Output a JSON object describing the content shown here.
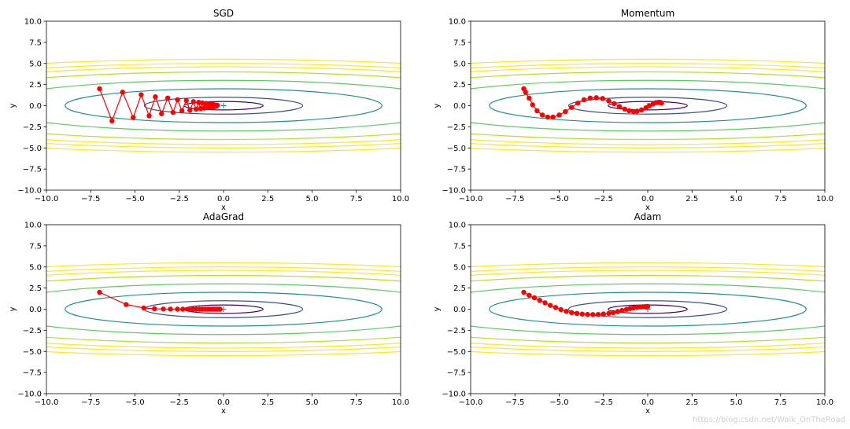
{
  "chart_data": [
    {
      "type": "line",
      "title": "SGD",
      "xlabel": "x",
      "ylabel": "y",
      "xlim": [
        -10,
        10
      ],
      "ylim": [
        -10,
        10
      ],
      "xticks": [
        -10,
        -7.5,
        -5,
        -2.5,
        0,
        2.5,
        5,
        7.5,
        10
      ],
      "yticks": [
        -10,
        -7.5,
        -5,
        -2.5,
        0,
        2.5,
        5,
        7.5,
        10
      ],
      "xtick_labels": [
        "−10.0",
        "−7.5",
        "−5.0",
        "−2.5",
        "0.0",
        "2.5",
        "5.0",
        "7.5",
        "10.0"
      ],
      "ytick_labels": [
        "−10.0",
        "−7.5",
        "−5.0",
        "−2.5",
        "0.0",
        "2.5",
        "5.0",
        "7.5",
        "10.0"
      ],
      "contour_levels": [
        0.5,
        1.0,
        2.0,
        3.0,
        4.0,
        4.6,
        5.0,
        5.5
      ],
      "minimum_marker": [
        0,
        0
      ],
      "series": [
        {
          "name": "path",
          "x": [
            -7.0,
            -6.3,
            -5.7,
            -5.1,
            -4.65,
            -4.2,
            -3.85,
            -3.5,
            -3.15,
            -2.85,
            -2.6,
            -2.35,
            -2.1,
            -1.9,
            -1.7,
            -1.55,
            -1.4,
            -1.3,
            -1.2,
            -1.1,
            -1.0,
            -0.9,
            -0.82,
            -0.75,
            -0.68,
            -0.62,
            -0.56,
            -0.5,
            -0.45,
            -0.4,
            -0.35
          ],
          "y": [
            2.0,
            -1.8,
            1.6,
            -1.4,
            1.3,
            -1.2,
            1.05,
            -0.95,
            0.9,
            -0.8,
            0.7,
            -0.6,
            0.62,
            -0.52,
            0.48,
            -0.42,
            0.4,
            -0.34,
            0.32,
            -0.28,
            0.26,
            -0.22,
            0.2,
            -0.18,
            0.15,
            -0.13,
            0.12,
            -0.1,
            0.08,
            -0.06,
            0.05
          ]
        }
      ]
    },
    {
      "type": "line",
      "title": "Momentum",
      "xlabel": "x",
      "ylabel": "y",
      "xlim": [
        -10,
        10
      ],
      "ylim": [
        -10,
        10
      ],
      "xticks": [
        -10,
        -7.5,
        -5,
        -2.5,
        0,
        2.5,
        5,
        7.5,
        10
      ],
      "yticks": [
        -10,
        -7.5,
        -5,
        -2.5,
        0,
        2.5,
        5,
        7.5,
        10
      ],
      "xtick_labels": [
        "−10.0",
        "−7.5",
        "−5.0",
        "−2.5",
        "0.0",
        "2.5",
        "5.0",
        "7.5",
        "10.0"
      ],
      "ytick_labels": [
        "−10.0",
        "−7.5",
        "−5.0",
        "−2.5",
        "0.0",
        "2.5",
        "5.0",
        "7.5",
        "10.0"
      ],
      "contour_levels": [
        0.5,
        1.0,
        2.0,
        3.0,
        4.0,
        4.6,
        5.0,
        5.5
      ],
      "minimum_marker": [
        0,
        0
      ],
      "series": [
        {
          "name": "path",
          "x": [
            -7.0,
            -6.9,
            -6.7,
            -6.5,
            -6.25,
            -5.95,
            -5.65,
            -5.35,
            -5.0,
            -4.65,
            -4.3,
            -3.95,
            -3.6,
            -3.25,
            -2.9,
            -2.55,
            -2.2,
            -1.9,
            -1.6,
            -1.3,
            -1.05,
            -0.8,
            -0.6,
            -0.35,
            -0.1,
            0.1,
            0.3,
            0.45,
            0.6,
            0.7,
            0.75,
            0.78
          ],
          "y": [
            2.0,
            1.6,
            0.9,
            0.1,
            -0.6,
            -1.1,
            -1.35,
            -1.35,
            -1.1,
            -0.7,
            -0.2,
            0.3,
            0.7,
            0.9,
            0.95,
            0.85,
            0.55,
            0.25,
            -0.1,
            -0.4,
            -0.6,
            -0.7,
            -0.65,
            -0.5,
            -0.25,
            0.0,
            0.2,
            0.35,
            0.4,
            0.4,
            0.35,
            0.3
          ]
        }
      ]
    },
    {
      "type": "line",
      "title": "AdaGrad",
      "xlabel": "x",
      "ylabel": "y",
      "xlim": [
        -10,
        10
      ],
      "ylim": [
        -10,
        10
      ],
      "xticks": [
        -10,
        -7.5,
        -5,
        -2.5,
        0,
        2.5,
        5,
        7.5,
        10
      ],
      "yticks": [
        -10,
        -7.5,
        -5,
        -2.5,
        0,
        2.5,
        5,
        7.5,
        10
      ],
      "xtick_labels": [
        "−10.0",
        "−7.5",
        "−5.0",
        "−2.5",
        "0.0",
        "2.5",
        "5.0",
        "7.5",
        "10.0"
      ],
      "ytick_labels": [
        "−10.0",
        "−7.5",
        "−5.0",
        "−2.5",
        "0.0",
        "2.5",
        "5.0",
        "7.5",
        "10.0"
      ],
      "contour_levels": [
        0.5,
        1.0,
        2.0,
        3.0,
        4.0,
        4.6,
        5.0,
        5.5
      ],
      "minimum_marker": [
        0,
        0
      ],
      "series": [
        {
          "name": "path",
          "x": [
            -7.0,
            -5.5,
            -4.5,
            -3.9,
            -3.4,
            -3.0,
            -2.6,
            -2.3,
            -2.0,
            -1.75,
            -1.55,
            -1.35,
            -1.2,
            -1.05,
            -0.9,
            -0.78,
            -0.66,
            -0.55,
            -0.45,
            -0.36,
            -0.28,
            -0.2
          ],
          "y": [
            2.0,
            0.55,
            0.15,
            0.05,
            0.02,
            0.01,
            0.0,
            0.0,
            0.0,
            0.0,
            0.0,
            0.0,
            0.0,
            0.0,
            0.0,
            0.0,
            0.0,
            0.0,
            0.0,
            0.0,
            0.0,
            0.0
          ]
        }
      ]
    },
    {
      "type": "line",
      "title": "Adam",
      "xlabel": "x",
      "ylabel": "y",
      "xlim": [
        -10,
        10
      ],
      "ylim": [
        -10,
        10
      ],
      "xticks": [
        -10,
        -7.5,
        -5,
        -2.5,
        0,
        2.5,
        5,
        7.5,
        10
      ],
      "yticks": [
        -10,
        -7.5,
        -5,
        -2.5,
        0,
        2.5,
        5,
        7.5,
        10
      ],
      "xtick_labels": [
        "−10.0",
        "−7.5",
        "−5.0",
        "−2.5",
        "0.0",
        "2.5",
        "5.0",
        "7.5",
        "10.0"
      ],
      "ytick_labels": [
        "−10.0",
        "−7.5",
        "−5.0",
        "−2.5",
        "0.0",
        "2.5",
        "5.0",
        "7.5",
        "10.0"
      ],
      "contour_levels": [
        0.5,
        1.0,
        2.0,
        3.0,
        4.0,
        4.6,
        5.0,
        5.5
      ],
      "minimum_marker": [
        0,
        0
      ],
      "series": [
        {
          "name": "path",
          "x": [
            -7.0,
            -6.7,
            -6.4,
            -6.1,
            -5.8,
            -5.5,
            -5.2,
            -4.9,
            -4.6,
            -4.3,
            -4.0,
            -3.7,
            -3.4,
            -3.1,
            -2.8,
            -2.5,
            -2.2,
            -1.95,
            -1.7,
            -1.45,
            -1.2,
            -1.0,
            -0.8,
            -0.6,
            -0.4,
            -0.25,
            -0.1,
            0.0
          ],
          "y": [
            2.0,
            1.65,
            1.35,
            1.05,
            0.75,
            0.45,
            0.2,
            -0.05,
            -0.25,
            -0.4,
            -0.5,
            -0.58,
            -0.62,
            -0.63,
            -0.62,
            -0.57,
            -0.5,
            -0.4,
            -0.28,
            -0.15,
            -0.02,
            0.08,
            0.16,
            0.22,
            0.27,
            0.3,
            0.32,
            0.33
          ]
        }
      ]
    }
  ],
  "colors": {
    "contour": [
      "#440154",
      "#3b528b",
      "#21908d",
      "#5dc963",
      "#b5de2b",
      "#fde725",
      "#fde725",
      "#fde725"
    ],
    "path": "#ff0000",
    "minimum_marker": "#1f77b4",
    "axes": "#000000"
  },
  "watermark": "https://blog.csdn.net/Walk_OnTheRoad"
}
